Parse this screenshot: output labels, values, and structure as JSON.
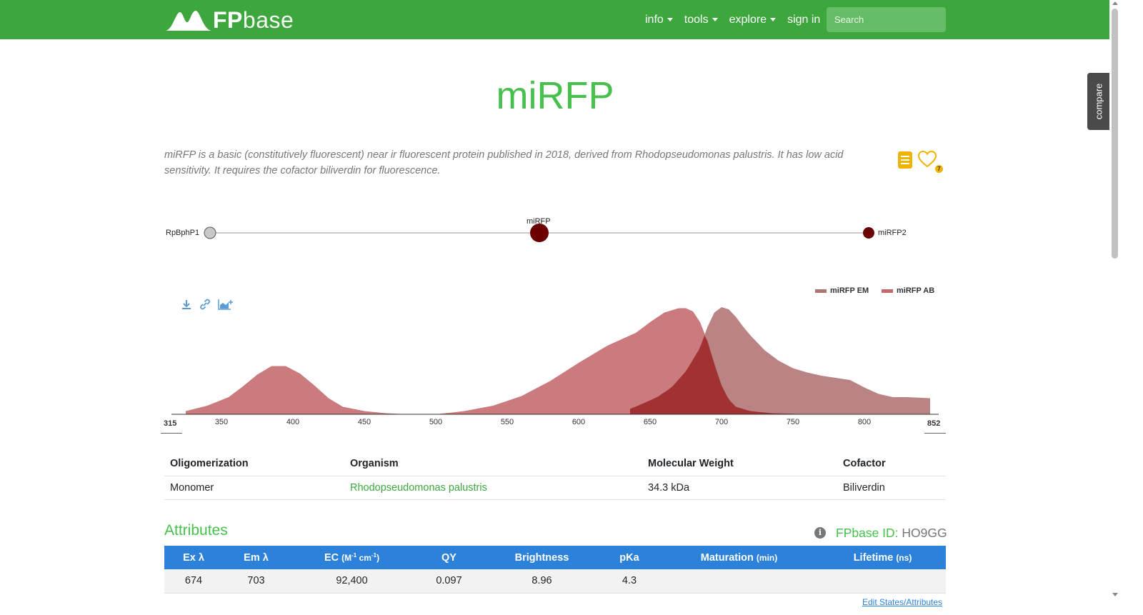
{
  "nav": {
    "logo_fp": "FP",
    "logo_base": "base",
    "items": [
      {
        "label": "info"
      },
      {
        "label": "tools"
      },
      {
        "label": "explore"
      },
      {
        "label": "sign in"
      }
    ],
    "search_placeholder": "Search"
  },
  "compare_tab": "compare",
  "protein": {
    "name": "miRFP",
    "description": "miRFP is a basic (constitutively fluorescent) near ir fluorescent protein published in 2018, derived from Rhodopseudomonas palustris. It has low acid sensitivity. It requires the cofactor biliverdin for fluorescence.",
    "favorite_count": "7"
  },
  "lineage": {
    "parent": "RpBphP1",
    "current": "miRFP",
    "child": "miRFP2",
    "colors": {
      "parent": "#c8c8c8",
      "current": "#6b0000",
      "child": "#6b0000"
    }
  },
  "spectra_legend": [
    {
      "label": "miRFP EM",
      "color": "#b07374"
    },
    {
      "label": "miRFP AB",
      "color": "#c4686b"
    }
  ],
  "chart_data": {
    "type": "area",
    "xlabel": "",
    "ylabel": "",
    "xlim": [
      315,
      852
    ],
    "ylim": [
      0,
      1
    ],
    "x_ticks": [
      350,
      400,
      450,
      500,
      550,
      600,
      650,
      700,
      750,
      800
    ],
    "x_range_labels": [
      "315",
      "852"
    ],
    "series": [
      {
        "name": "miRFP AB",
        "color": "#c4686b",
        "x": [
          325,
          340,
          355,
          365,
          375,
          385,
          395,
          405,
          415,
          425,
          435,
          450,
          465,
          480,
          500,
          520,
          540,
          560,
          580,
          600,
          620,
          640,
          650,
          660,
          670,
          675,
          680,
          685,
          690,
          695,
          700,
          705,
          710,
          720,
          735,
          760,
          790,
          800
        ],
        "y": [
          0.03,
          0.08,
          0.16,
          0.26,
          0.37,
          0.45,
          0.45,
          0.38,
          0.27,
          0.15,
          0.07,
          0.03,
          0.01,
          0.0,
          0.0,
          0.03,
          0.08,
          0.17,
          0.31,
          0.48,
          0.64,
          0.76,
          0.86,
          0.95,
          0.99,
          0.99,
          0.96,
          0.86,
          0.69,
          0.47,
          0.27,
          0.14,
          0.07,
          0.03,
          0.01,
          0.0,
          0.0,
          0.0
        ]
      },
      {
        "name": "miRFP EM",
        "color": "#b07374",
        "x": [
          636,
          645,
          655,
          665,
          675,
          685,
          690,
          695,
          700,
          705,
          710,
          715,
          720,
          730,
          740,
          750,
          760,
          770,
          780,
          790,
          800,
          810,
          820,
          830,
          846
        ],
        "y": [
          0.05,
          0.1,
          0.16,
          0.25,
          0.4,
          0.62,
          0.81,
          0.95,
          1.0,
          0.98,
          0.91,
          0.82,
          0.74,
          0.6,
          0.5,
          0.43,
          0.39,
          0.36,
          0.34,
          0.32,
          0.25,
          0.19,
          0.16,
          0.16,
          0.15
        ]
      }
    ]
  },
  "properties": {
    "headers": [
      "Oligomerization",
      "Organism",
      "Molecular Weight",
      "Cofactor"
    ],
    "row": {
      "oligomerization": "Monomer",
      "organism": "Rhodopseudomonas palustris",
      "mw": "34.3 kDa",
      "cofactor": "Biliverdin"
    }
  },
  "attributes": {
    "heading": "Attributes",
    "fpbase_id_label": "FPbase ID:",
    "fpbase_id": "HO9GG",
    "headers": {
      "ex": "Ex λ",
      "em": "Em λ",
      "ec": "EC",
      "ec_unit_open": "(M",
      "ec_unit_sup1": "-1",
      "ec_unit_mid": " cm",
      "ec_unit_sup2": "-1",
      "ec_unit_close": ")",
      "qy": "QY",
      "brightness": "Brightness",
      "pka": "pKa",
      "maturation": "Maturation",
      "maturation_unit": "(min)",
      "lifetime": "Lifetime",
      "lifetime_unit": "(ns)"
    },
    "values": {
      "ex": "674",
      "em": "703",
      "ec": "92,400",
      "qy": "0.097",
      "brightness": "8.96",
      "pka": "4.3",
      "maturation": "",
      "lifetime": ""
    },
    "edit_link": "Edit States/Attributes"
  }
}
